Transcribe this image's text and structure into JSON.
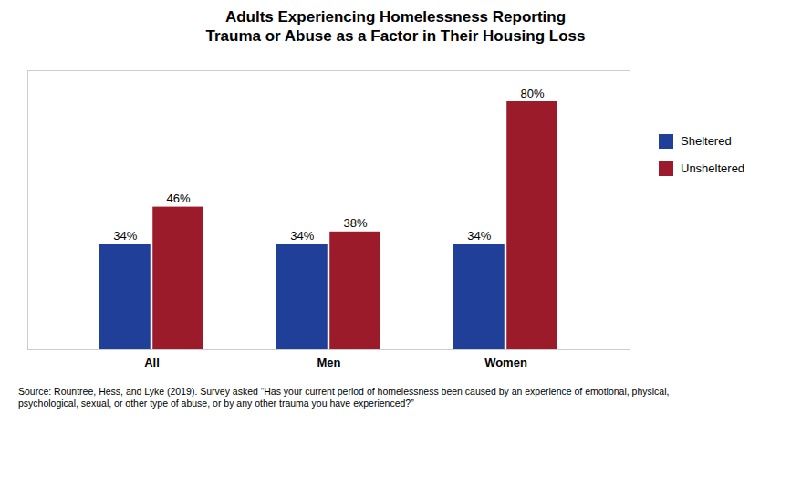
{
  "chart_data": {
    "type": "bar",
    "title": "Adults Experiencing Homelessness Reporting\nTrauma or Abuse as a Factor in Their Housing Loss",
    "categories": [
      "All",
      "Men",
      "Women"
    ],
    "series": [
      {
        "name": "Sheltered",
        "color": "#1F3F99",
        "values": [
          34,
          34,
          34
        ],
        "value_labels": [
          "34%",
          "34%",
          "34%"
        ]
      },
      {
        "name": "Unsheltered",
        "color": "#9B1B2A",
        "values": [
          46,
          38,
          80
        ],
        "value_labels": [
          "46%",
          "38%",
          "80%"
        ]
      }
    ],
    "ylim": [
      0,
      90
    ],
    "grid": false,
    "legend": "right",
    "data_labels": true,
    "tick_labels": "x",
    "caption": "Source: Rountree, Hess, and Lyke (2019). Survey asked “Has your current period of homelessness been caused by an experience of emotional, physical,\npsychological, sexual, or other type of abuse, or by any other trauma you have experienced?”"
  }
}
